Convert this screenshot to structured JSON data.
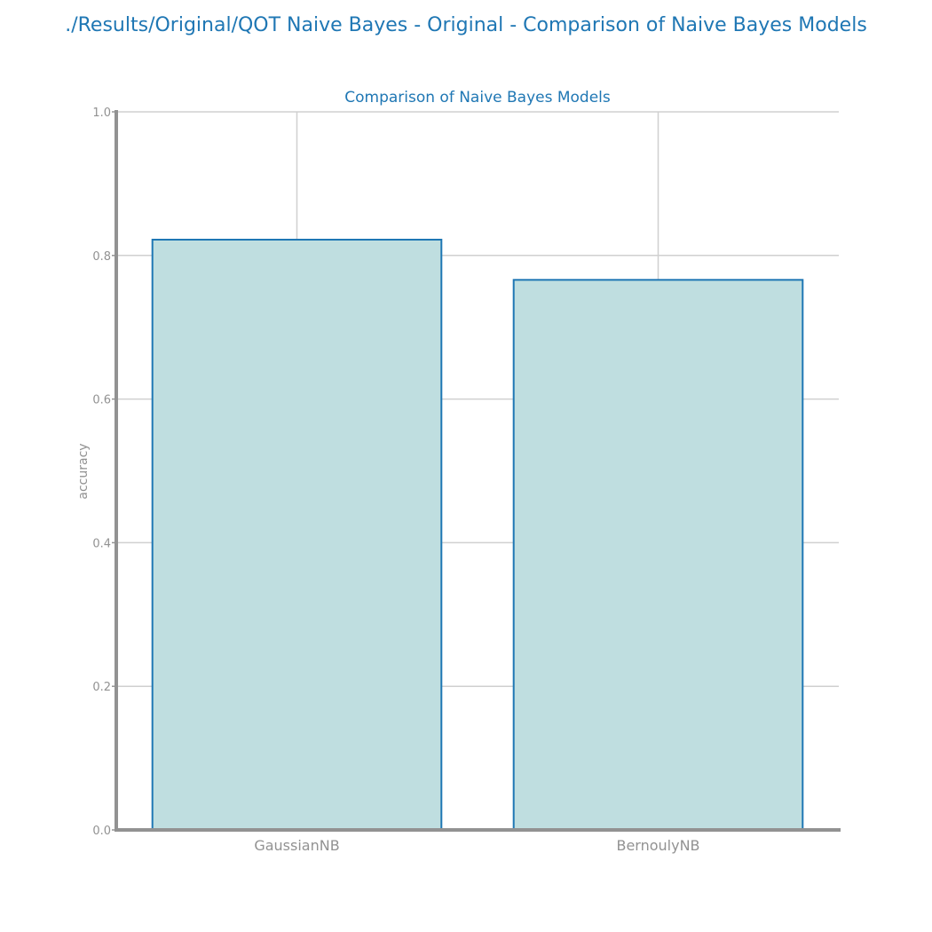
{
  "figure": {
    "title": "./Results/Original/QOT Naive Bayes - Original - Comparison of Naive Bayes Models"
  },
  "chart_data": {
    "type": "bar",
    "title": "Comparison of Naive Bayes Models",
    "xlabel": "",
    "ylabel": "accuracy",
    "categories": [
      "GaussianNB",
      "BernoulyNB"
    ],
    "values": [
      0.822,
      0.766
    ],
    "ylim": [
      0,
      1.0
    ],
    "yticks": [
      "0.0",
      "0.2",
      "0.4",
      "0.6",
      "0.8",
      "1.0"
    ],
    "grid": true,
    "legend": "none"
  },
  "colors": {
    "title": "#1f77b4",
    "bar_fill": "#bfdee0",
    "bar_edge": "#1f77b4",
    "axis": "#929292",
    "grid": "#d0d0d0",
    "tick_label": "#929292"
  }
}
